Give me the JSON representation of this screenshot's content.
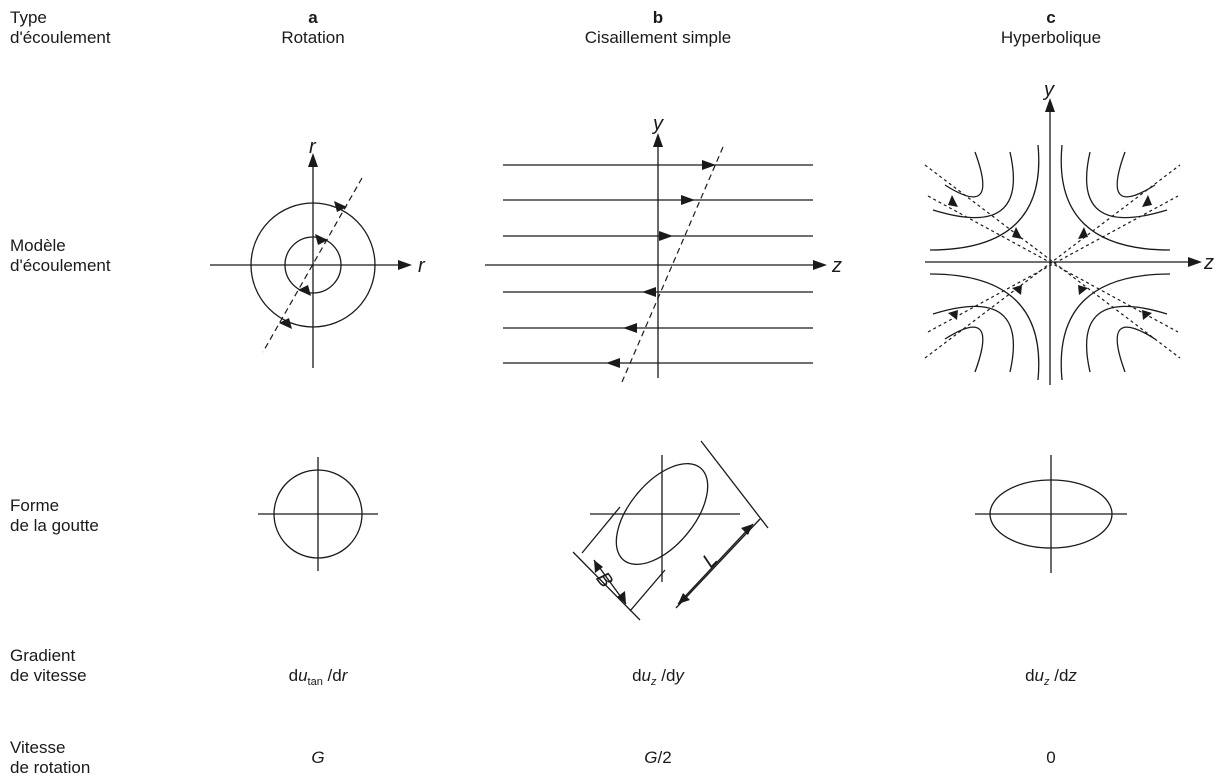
{
  "rows": {
    "type_line1": "Type",
    "type_line2": "d'écoulement",
    "model_line1": "Modèle",
    "model_line2": "d'écoulement",
    "shape_line1": "Forme",
    "shape_line2": "de la goutte",
    "gradient_line1": "Gradient",
    "gradient_line2": "de vitesse",
    "rotation_line1": "Vitesse",
    "rotation_line2": "de rotation"
  },
  "columns": [
    {
      "letter": "a",
      "name": "Rotation"
    },
    {
      "letter": "b",
      "name": "Cisaillement simple"
    },
    {
      "letter": "c",
      "name": "Hyperbolique"
    }
  ],
  "axis_labels": {
    "a_vertical": "r",
    "a_horizontal": "r",
    "b_vertical": "y",
    "b_horizontal": "z",
    "c_vertical": "y",
    "c_horizontal": "z"
  },
  "drop_dimensions": {
    "breadth": "B",
    "length": "L"
  },
  "gradients": {
    "a": {
      "prefix": "d",
      "var": "u",
      "sub": "tan",
      "mid": " /d",
      "den": "r"
    },
    "b": {
      "prefix": "d",
      "var": "u",
      "sub": "z",
      "mid": " /d",
      "den": "y"
    },
    "c": {
      "prefix": "d",
      "var": "u",
      "sub": "z",
      "mid": " /d",
      "den": "z"
    }
  },
  "rotation_speeds": {
    "a": {
      "var": "G",
      "rest": ""
    },
    "b": {
      "var": "G",
      "rest": "/2"
    },
    "c": {
      "var": "",
      "rest": "0"
    }
  }
}
